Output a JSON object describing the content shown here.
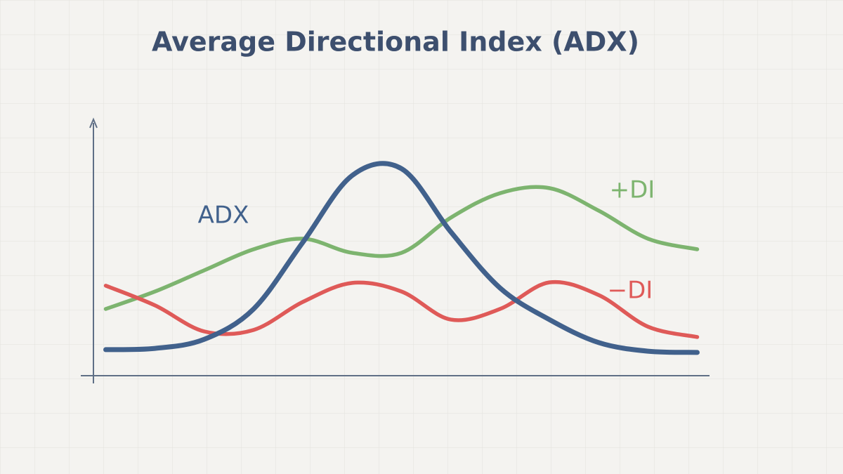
{
  "chart_data": {
    "type": "line",
    "title": "Average Directional Index (ADX)",
    "x": [
      2,
      10,
      18,
      26,
      34,
      42,
      50,
      58,
      66,
      74,
      82,
      90,
      98
    ],
    "xlim": [
      0,
      100
    ],
    "ylim": [
      0,
      100
    ],
    "series": [
      {
        "name": "ADX",
        "color": "#41618c",
        "values": [
          10.3,
          10.8,
          14.4,
          26.4,
          52.8,
          79.2,
          81.9,
          56.9,
          34.7,
          22.2,
          13.1,
          9.7,
          9.2
        ]
      },
      {
        "name": "+DI",
        "color": "#7db46f",
        "values": [
          26.4,
          33.3,
          41.7,
          50,
          54.2,
          48.6,
          48.6,
          62.5,
          72.2,
          74.2,
          65.3,
          54.2,
          50
        ]
      },
      {
        "name": "−DI",
        "color": "#df5a58",
        "values": [
          35.6,
          27.8,
          17.5,
          18.1,
          29.2,
          36.7,
          33.3,
          22.2,
          26.4,
          36.9,
          31.9,
          19.4,
          15.3
        ]
      }
    ]
  }
}
